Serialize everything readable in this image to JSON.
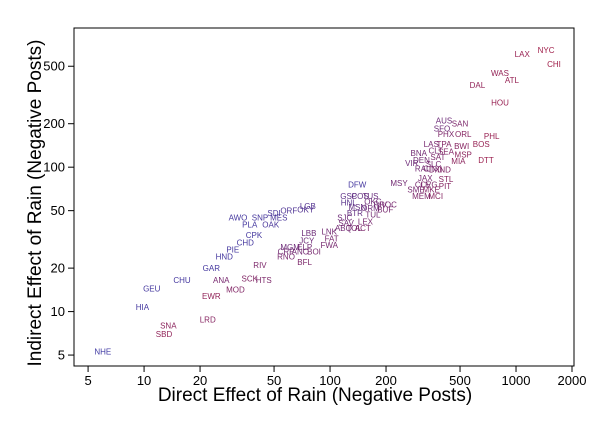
{
  "chart_data": {
    "type": "scatter",
    "title": "",
    "xlabel": "Direct Effect of Rain (Negative Posts)",
    "ylabel": "Indirect Effect of Rain (Negative Posts)",
    "x_scale": "log",
    "y_scale": "log",
    "xlim": [
      4.2,
      2050
    ],
    "ylim": [
      4.2,
      920
    ],
    "x_ticks": [
      5,
      10,
      20,
      50,
      100,
      200,
      500,
      1000,
      2000
    ],
    "y_ticks": [
      5,
      10,
      20,
      50,
      100,
      200,
      500
    ],
    "grid": false,
    "legend": "none",
    "colors": {
      "low": "#3b3ba8",
      "high": "#a01f4a"
    },
    "points": [
      {
        "label": "NYC",
        "x": 1450,
        "y": 650,
        "c": 1.0
      },
      {
        "label": "LAX",
        "x": 1080,
        "y": 610,
        "c": 0.92
      },
      {
        "label": "CHI",
        "x": 1600,
        "y": 520,
        "c": 1.0
      },
      {
        "label": "WAS",
        "x": 820,
        "y": 450,
        "c": 0.88
      },
      {
        "label": "ATL",
        "x": 950,
        "y": 400,
        "c": 0.9
      },
      {
        "label": "DAL",
        "x": 620,
        "y": 370,
        "c": 0.85
      },
      {
        "label": "HOU",
        "x": 820,
        "y": 280,
        "c": 0.92
      },
      {
        "label": "AUS",
        "x": 410,
        "y": 210,
        "c": 0.5
      },
      {
        "label": "SAN",
        "x": 500,
        "y": 200,
        "c": 0.65
      },
      {
        "label": "SFO",
        "x": 400,
        "y": 185,
        "c": 0.5
      },
      {
        "label": "PHX",
        "x": 420,
        "y": 170,
        "c": 0.65
      },
      {
        "label": "ORL",
        "x": 520,
        "y": 170,
        "c": 0.75
      },
      {
        "label": "PHL",
        "x": 740,
        "y": 165,
        "c": 0.92
      },
      {
        "label": "LAS",
        "x": 350,
        "y": 145,
        "c": 0.6
      },
      {
        "label": "TPA",
        "x": 410,
        "y": 145,
        "c": 0.7
      },
      {
        "label": "BWI",
        "x": 510,
        "y": 140,
        "c": 0.75
      },
      {
        "label": "BOS",
        "x": 650,
        "y": 145,
        "c": 0.9
      },
      {
        "label": "CLT",
        "x": 370,
        "y": 130,
        "c": 0.6
      },
      {
        "label": "SEA",
        "x": 420,
        "y": 128,
        "c": 0.7
      },
      {
        "label": "BNA",
        "x": 300,
        "y": 125,
        "c": 0.55
      },
      {
        "label": "SAT",
        "x": 380,
        "y": 118,
        "c": 0.65
      },
      {
        "label": "MSP",
        "x": 520,
        "y": 122,
        "c": 0.8
      },
      {
        "label": "DEN",
        "x": 310,
        "y": 112,
        "c": 0.55
      },
      {
        "label": "MIA",
        "x": 490,
        "y": 110,
        "c": 0.8
      },
      {
        "label": "DTT",
        "x": 690,
        "y": 112,
        "c": 0.95
      },
      {
        "label": "VIR",
        "x": 275,
        "y": 107,
        "c": 0.5
      },
      {
        "label": "SLC",
        "x": 360,
        "y": 105,
        "c": 0.6
      },
      {
        "label": "RAL",
        "x": 315,
        "y": 98,
        "c": 0.55
      },
      {
        "label": "CIN",
        "x": 345,
        "y": 98,
        "c": 0.6
      },
      {
        "label": "DXI",
        "x": 370,
        "y": 96,
        "c": 0.65
      },
      {
        "label": "IND",
        "x": 410,
        "y": 96,
        "c": 0.7
      },
      {
        "label": "JAX",
        "x": 325,
        "y": 84,
        "c": 0.6
      },
      {
        "label": "STL",
        "x": 420,
        "y": 83,
        "c": 0.75
      },
      {
        "label": "DFW",
        "x": 140,
        "y": 76,
        "c": 0.1
      },
      {
        "label": "MSY",
        "x": 235,
        "y": 78,
        "c": 0.55
      },
      {
        "label": "CLE",
        "x": 315,
        "y": 76,
        "c": 0.6
      },
      {
        "label": "CVG",
        "x": 340,
        "y": 76,
        "c": 0.65
      },
      {
        "label": "PIT",
        "x": 415,
        "y": 74,
        "c": 0.75
      },
      {
        "label": "SME",
        "x": 290,
        "y": 70,
        "c": 0.6
      },
      {
        "label": "MKE",
        "x": 350,
        "y": 70,
        "c": 0.7
      },
      {
        "label": "MEM",
        "x": 310,
        "y": 63,
        "c": 0.65
      },
      {
        "label": "MCI",
        "x": 370,
        "y": 63,
        "c": 0.75
      },
      {
        "label": "GSP",
        "x": 126,
        "y": 63,
        "c": 0.35
      },
      {
        "label": "COS",
        "x": 145,
        "y": 63,
        "c": 0.4
      },
      {
        "label": "TUS",
        "x": 165,
        "y": 63,
        "c": 0.45
      },
      {
        "label": "HNL",
        "x": 126,
        "y": 57,
        "c": 0.3
      },
      {
        "label": "OKC",
        "x": 170,
        "y": 58,
        "c": 0.5
      },
      {
        "label": "RIV",
        "x": 186,
        "y": 55,
        "c": 0.55
      },
      {
        "label": "ROC",
        "x": 205,
        "y": 55,
        "c": 0.6
      },
      {
        "label": "MSN",
        "x": 140,
        "y": 53,
        "c": 0.4
      },
      {
        "label": "ORM",
        "x": 165,
        "y": 52,
        "c": 0.5
      },
      {
        "label": "BUF",
        "x": 198,
        "y": 51,
        "c": 0.6
      },
      {
        "label": "BTR",
        "x": 136,
        "y": 48,
        "c": 0.4
      },
      {
        "label": "TUL",
        "x": 170,
        "y": 47,
        "c": 0.55
      },
      {
        "label": "LGB",
        "x": 76,
        "y": 54,
        "c": 0.25
      },
      {
        "label": "ORF",
        "x": 60,
        "y": 50,
        "c": 0.2
      },
      {
        "label": "OKY",
        "x": 74,
        "y": 51,
        "c": 0.25
      },
      {
        "label": "SDI",
        "x": 50,
        "y": 48,
        "c": 0.15
      },
      {
        "label": "AWO",
        "x": 32,
        "y": 45,
        "c": 0.1
      },
      {
        "label": "SNP",
        "x": 42,
        "y": 45,
        "c": 0.12
      },
      {
        "label": "MES",
        "x": 53,
        "y": 45,
        "c": 0.15
      },
      {
        "label": "SJC",
        "x": 120,
        "y": 45,
        "c": 0.5
      },
      {
        "label": "SAV",
        "x": 122,
        "y": 41,
        "c": 0.55
      },
      {
        "label": "LEX",
        "x": 155,
        "y": 42,
        "c": 0.6
      },
      {
        "label": "ABQ",
        "x": 118,
        "y": 38,
        "c": 0.55
      },
      {
        "label": "TOL",
        "x": 135,
        "y": 38,
        "c": 0.6
      },
      {
        "label": "ACT",
        "x": 150,
        "y": 38,
        "c": 0.65
      },
      {
        "label": "PLA",
        "x": 37,
        "y": 40,
        "c": 0.1
      },
      {
        "label": "OAK",
        "x": 48,
        "y": 40,
        "c": 0.15
      },
      {
        "label": "LNK",
        "x": 99,
        "y": 36,
        "c": 0.55
      },
      {
        "label": "CPK",
        "x": 39,
        "y": 34,
        "c": 0.1
      },
      {
        "label": "LBB",
        "x": 77,
        "y": 35,
        "c": 0.5
      },
      {
        "label": "FAT",
        "x": 102,
        "y": 32,
        "c": 0.6
      },
      {
        "label": "CHD",
        "x": 35,
        "y": 30,
        "c": 0.1
      },
      {
        "label": "JCY",
        "x": 75,
        "y": 31,
        "c": 0.5
      },
      {
        "label": "FWA",
        "x": 99,
        "y": 29,
        "c": 0.6
      },
      {
        "label": "MGM",
        "x": 61,
        "y": 28,
        "c": 0.5
      },
      {
        "label": "ELP",
        "x": 73,
        "y": 28,
        "c": 0.55
      },
      {
        "label": "PIE",
        "x": 30,
        "y": 27,
        "c": 0.1
      },
      {
        "label": "CRP",
        "x": 58,
        "y": 26,
        "c": 0.55
      },
      {
        "label": "ANC",
        "x": 69,
        "y": 26,
        "c": 0.55
      },
      {
        "label": "BOI",
        "x": 82,
        "y": 26,
        "c": 0.6
      },
      {
        "label": "HND",
        "x": 27,
        "y": 24,
        "c": 0.1
      },
      {
        "label": "RNO",
        "x": 58,
        "y": 24,
        "c": 0.6
      },
      {
        "label": "BFL",
        "x": 73,
        "y": 22,
        "c": 0.65
      },
      {
        "label": "GAR",
        "x": 23,
        "y": 20,
        "c": 0.1
      },
      {
        "label": "RIV",
        "x": 42,
        "y": 21,
        "c": 0.65
      },
      {
        "label": "SCK",
        "x": 37,
        "y": 17,
        "c": 0.7
      },
      {
        "label": "HTS",
        "x": 44,
        "y": 16.5,
        "c": 0.65
      },
      {
        "label": "CHU",
        "x": 16,
        "y": 16.5,
        "c": 0.1
      },
      {
        "label": "ANA",
        "x": 26,
        "y": 16.5,
        "c": 0.6
      },
      {
        "label": "GEU",
        "x": 11,
        "y": 14.5,
        "c": 0.1
      },
      {
        "label": "MOD",
        "x": 31,
        "y": 14.2,
        "c": 0.7
      },
      {
        "label": "EWR",
        "x": 23,
        "y": 12.8,
        "c": 0.85
      },
      {
        "label": "HIA",
        "x": 9.8,
        "y": 10.8,
        "c": 0.1
      },
      {
        "label": "LRD",
        "x": 22,
        "y": 8.8,
        "c": 0.75
      },
      {
        "label": "SNA",
        "x": 13.5,
        "y": 8.0,
        "c": 0.8
      },
      {
        "label": "SBD",
        "x": 12.8,
        "y": 7.0,
        "c": 0.85
      },
      {
        "label": "NHE",
        "x": 6,
        "y": 5.3,
        "c": 0.05
      }
    ]
  }
}
